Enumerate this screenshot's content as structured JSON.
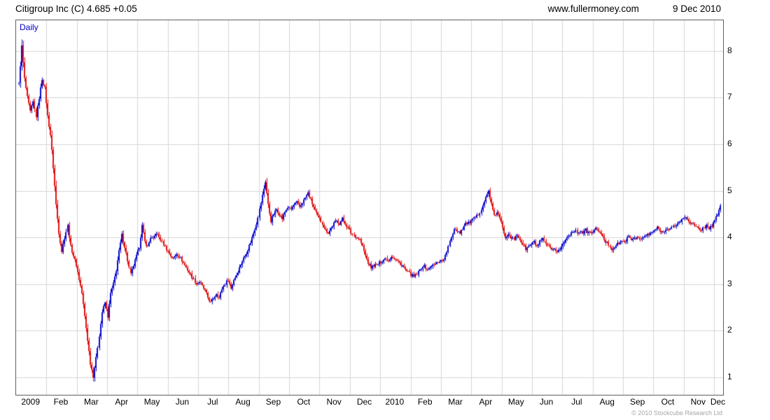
{
  "header": {
    "title": "Citigroup Inc (C) 4.685 +0.05",
    "site": "www.fullermoney.com",
    "date": "9 Dec 2010"
  },
  "chart": {
    "timeframe_label": "Daily"
  },
  "footer": {
    "copyright": "© 2010 Stockcube Research Ltd"
  },
  "chart_data": {
    "type": "candlestick",
    "title": "Citigroup Inc (C)",
    "timeframe": "Daily",
    "last_price": 4.685,
    "change": "+0.05",
    "x_months": [
      "2009",
      "Feb",
      "Mar",
      "Apr",
      "May",
      "Jun",
      "Jul",
      "Aug",
      "Sep",
      "Oct",
      "Nov",
      "Dec",
      "2010",
      "Feb",
      "Mar",
      "Apr",
      "May",
      "Jun",
      "Jul",
      "Aug",
      "Sep",
      "Oct",
      "Nov",
      "Dec"
    ],
    "months_span": 23.3,
    "y_ticks": [
      1,
      2,
      3,
      4,
      5,
      6,
      7,
      8
    ],
    "y_range": [
      0.62,
      8.66
    ],
    "grid": true,
    "grid_color": "#d6d6d6",
    "up_color": "#0a0acd",
    "down_color": "#e01010",
    "price_path": [
      7.3,
      8.1,
      7.4,
      7.0,
      6.7,
      6.9,
      6.6,
      7.0,
      7.4,
      7.2,
      6.6,
      6.2,
      5.5,
      4.7,
      4.1,
      3.7,
      4.0,
      4.25,
      3.8,
      3.6,
      3.4,
      3.1,
      2.8,
      2.3,
      1.8,
      1.3,
      1.02,
      1.4,
      1.9,
      2.4,
      2.6,
      2.3,
      2.8,
      3.0,
      3.3,
      3.7,
      4.05,
      3.8,
      3.5,
      3.2,
      3.4,
      3.6,
      3.8,
      4.25,
      3.9,
      3.8,
      4.0,
      3.95,
      4.1,
      4.0,
      3.9,
      3.8,
      3.7,
      3.6,
      3.55,
      3.65,
      3.6,
      3.5,
      3.4,
      3.3,
      3.2,
      3.1,
      3.0,
      3.05,
      2.95,
      2.85,
      2.7,
      2.6,
      2.7,
      2.8,
      2.7,
      2.9,
      3.0,
      3.1,
      2.9,
      3.1,
      3.2,
      3.35,
      3.5,
      3.6,
      3.75,
      3.9,
      4.1,
      4.3,
      4.6,
      4.9,
      5.2,
      4.7,
      4.35,
      4.5,
      4.6,
      4.5,
      4.4,
      4.55,
      4.65,
      4.6,
      4.7,
      4.75,
      4.65,
      4.75,
      4.85,
      4.95,
      4.8,
      4.65,
      4.5,
      4.4,
      4.3,
      4.15,
      4.1,
      4.2,
      4.3,
      4.35,
      4.3,
      4.4,
      4.3,
      4.2,
      4.1,
      4.05,
      4.0,
      3.95,
      3.8,
      3.6,
      3.45,
      3.35,
      3.4,
      3.4,
      3.45,
      3.5,
      3.55,
      3.5,
      3.6,
      3.55,
      3.5,
      3.45,
      3.4,
      3.3,
      3.25,
      3.2,
      3.15,
      3.2,
      3.3,
      3.4,
      3.35,
      3.3,
      3.4,
      3.4,
      3.45,
      3.5,
      3.5,
      3.6,
      3.8,
      4.0,
      4.2,
      4.15,
      4.1,
      4.2,
      4.3,
      4.3,
      4.35,
      4.4,
      4.45,
      4.55,
      4.7,
      4.85,
      5.0,
      4.7,
      4.45,
      4.55,
      4.4,
      4.2,
      4.0,
      4.1,
      4.0,
      3.95,
      4.05,
      3.95,
      3.85,
      3.75,
      3.8,
      3.85,
      3.9,
      3.8,
      3.9,
      3.95,
      3.85,
      3.8,
      3.7,
      3.75,
      3.7,
      3.75,
      3.85,
      3.95,
      4.05,
      4.1,
      4.15,
      4.1,
      4.15,
      4.1,
      4.15,
      4.1,
      4.1,
      4.15,
      4.2,
      4.1,
      4.0,
      3.9,
      3.85,
      3.75,
      3.8,
      3.85,
      3.9,
      3.9,
      3.95,
      4.0,
      3.95,
      4.0,
      4.0,
      3.95,
      4.0,
      4.05,
      4.05,
      4.1,
      4.15,
      4.2,
      4.15,
      4.1,
      4.2,
      4.15,
      4.2,
      4.25,
      4.3,
      4.35,
      4.4,
      4.45,
      4.35,
      4.3,
      4.25,
      4.2,
      4.15,
      4.2,
      4.25,
      4.2,
      4.25,
      4.35,
      4.5,
      4.685
    ]
  }
}
